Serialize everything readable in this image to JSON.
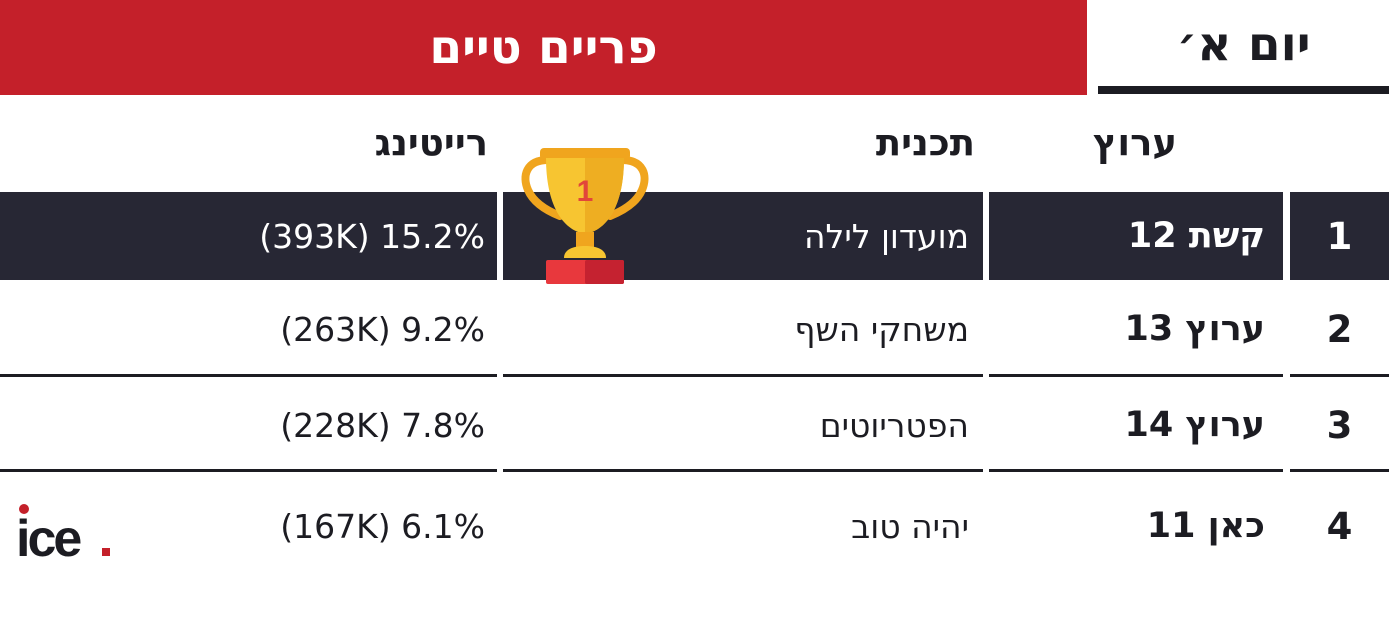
{
  "banner": {
    "title": "פריים טיים"
  },
  "day_label": "יום א׳",
  "headers": {
    "channel": "ערוץ",
    "program": "תכנית",
    "rating": "רייטינג"
  },
  "rows": [
    {
      "rank": "1",
      "channel": "קשת 12",
      "program": "מועדון לילה",
      "rating": "(393K) 15.2%"
    },
    {
      "rank": "2",
      "channel": "ערוץ 13",
      "program": "משחקי השף",
      "rating": "(263K) 9.2%"
    },
    {
      "rank": "3",
      "channel": "ערוץ 14",
      "program": "הפטריוטים",
      "rating": "(228K) 7.8%"
    },
    {
      "rank": "4",
      "channel": "כאן 11",
      "program": "יהיה טוב",
      "rating": "(167K) 6.1%"
    }
  ],
  "trophy": {
    "icon": "trophy-icon",
    "number": "1"
  },
  "logo": {
    "text": "ice",
    "icon": "ice-logo"
  },
  "colors": {
    "banner": "#c4202a",
    "highlight_row": "#272734",
    "text": "#1c1c22",
    "trophy_gold": "#f5b82e",
    "trophy_base": "#e8383d"
  }
}
